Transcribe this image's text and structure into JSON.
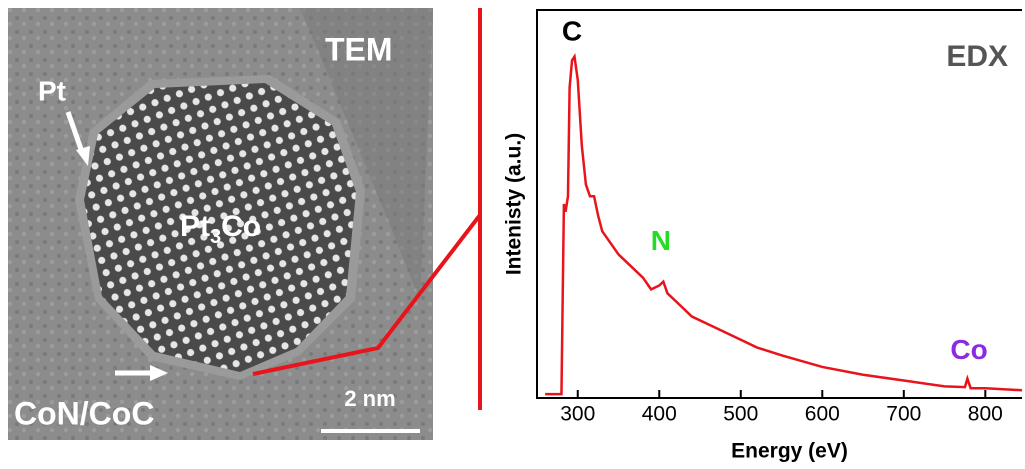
{
  "image": {
    "labels": {
      "tem": "TEM",
      "pt": "Pt",
      "alloy": [
        "Pt",
        "3",
        "Co"
      ],
      "shell": "CoN/CoC",
      "scale": "2 nm"
    }
  },
  "chart_data": {
    "type": "line",
    "title": "EDX",
    "x_label": "Energy (eV)",
    "y_label": "Intenisty (a.u.)",
    "x": [
      260,
      275,
      280,
      283,
      285,
      288,
      290,
      293,
      296,
      300,
      305,
      310,
      315,
      320,
      325,
      330,
      340,
      350,
      360,
      370,
      380,
      390,
      400,
      405,
      410,
      420,
      440,
      460,
      480,
      500,
      520,
      550,
      600,
      650,
      700,
      750,
      775,
      778,
      782,
      800,
      845
    ],
    "values": [
      1,
      1,
      1,
      50,
      48,
      52,
      80,
      87,
      88,
      82,
      65,
      55,
      52,
      52,
      47,
      43,
      40,
      37,
      35,
      33,
      31,
      28,
      29,
      30,
      27,
      25,
      21,
      19,
      17,
      15,
      13,
      11,
      8,
      6,
      4.5,
      3,
      2.8,
      5,
      2.5,
      2.5,
      2
    ],
    "color": "#e8141b",
    "xlim": [
      250,
      845
    ],
    "ylim": [
      0,
      100
    ],
    "xticks": [
      300,
      400,
      500,
      600,
      700,
      800
    ],
    "annotations": [
      {
        "text": "C",
        "x": 293,
        "y": 94,
        "color": "#000000"
      },
      {
        "text": "N",
        "x": 402,
        "y": 40,
        "color": "#22dd22"
      },
      {
        "text": "Co",
        "x": 780,
        "y": 12,
        "color": "#8a2be2"
      }
    ]
  }
}
